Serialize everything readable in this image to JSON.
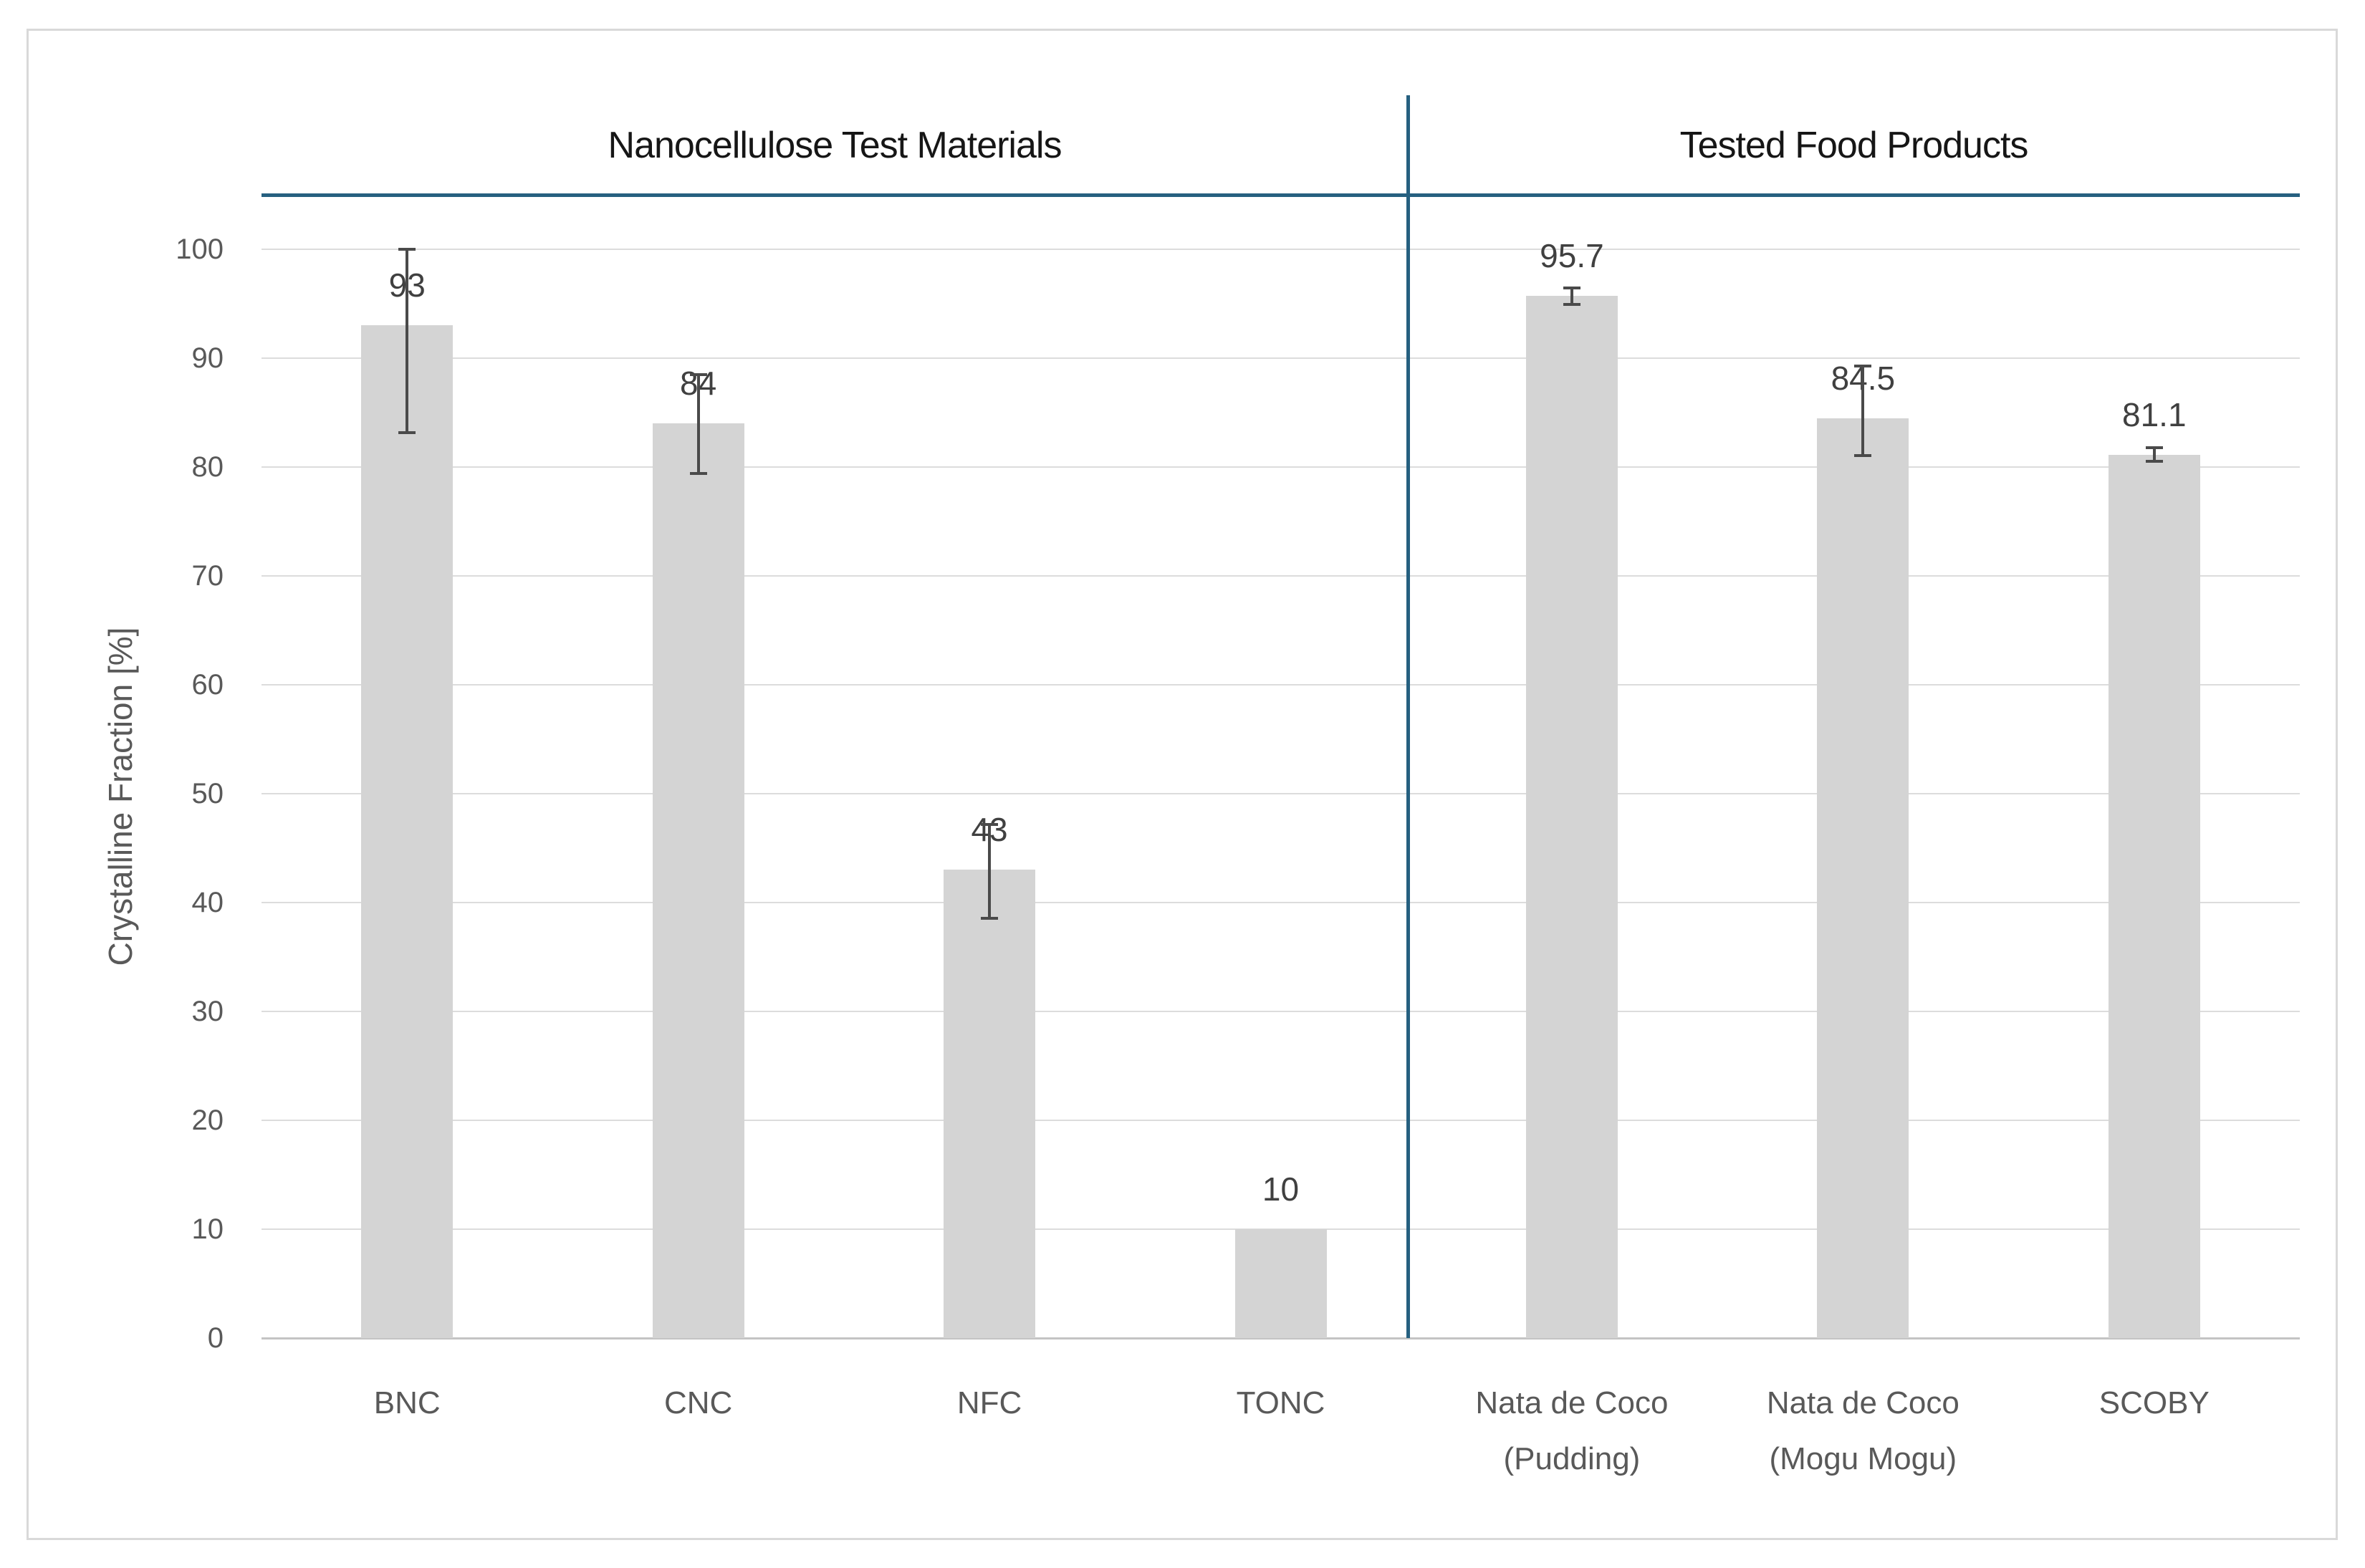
{
  "page": {
    "background_color": "#ffffff",
    "border_color": "#d9d9d9"
  },
  "chart_data": {
    "type": "bar",
    "group_headers": [
      {
        "label": "Nanocellulose Test Materials",
        "categories_span": [
          "BNC",
          "CNC",
          "NFC",
          "TONC"
        ]
      },
      {
        "label": "Tested Food Products",
        "categories_span": [
          "Nata de Coco (Pudding)",
          "Nata de Coco (Mogu Mogu)",
          "SCOBY"
        ]
      }
    ],
    "ylabel": "Crystalline Fraction [%]",
    "xlabel": "",
    "ylim": [
      0,
      100
    ],
    "yticks": [
      0,
      10,
      20,
      30,
      40,
      50,
      60,
      70,
      80,
      90,
      100
    ],
    "grid": true,
    "legend": "none",
    "categories": [
      "BNC",
      "CNC",
      "NFC",
      "TONC",
      "Nata de Coco\n(Pudding)",
      "Nata de Coco\n(Mogu Mogu)",
      "SCOBY"
    ],
    "bars": [
      {
        "category": "BNC",
        "group": "Nanocellulose Test Materials",
        "value": 93,
        "label": "93",
        "error_high": 100.1,
        "error_low": 83.0
      },
      {
        "category": "CNC",
        "group": "Nanocellulose Test Materials",
        "value": 84,
        "label": "84",
        "error_high": 88.6,
        "error_low": 79.3
      },
      {
        "category": "NFC",
        "group": "Nanocellulose Test Materials",
        "value": 43,
        "label": "43",
        "error_high": 47.3,
        "error_low": 38.4
      },
      {
        "category": "TONC",
        "group": "Nanocellulose Test Materials",
        "value": 10,
        "label": "10",
        "error_high": null,
        "error_low": null
      },
      {
        "category": "Nata de Coco (Pudding)",
        "group": "Tested Food Products",
        "value": 95.7,
        "label": "95.7",
        "error_high": 96.6,
        "error_low": 94.8
      },
      {
        "category": "Nata de Coco (Mogu Mogu)",
        "group": "Tested Food Products",
        "value": 84.5,
        "label": "84.5",
        "error_high": 89.4,
        "error_low": 80.9
      },
      {
        "category": "SCOBY",
        "group": "Tested Food Products",
        "value": 81.1,
        "label": "81.1",
        "error_high": 81.9,
        "error_low": 80.4
      }
    ],
    "style": {
      "bar_color": "#d4d4d4",
      "gridline_color": "#dcdcdc",
      "axis_line_color": "#c4c4c4",
      "error_bar_color": "#4a4a4a",
      "divider_color": "#266080",
      "tick_label_color": "#595959",
      "value_label_color": "#404040",
      "header_color": "#161616"
    }
  }
}
